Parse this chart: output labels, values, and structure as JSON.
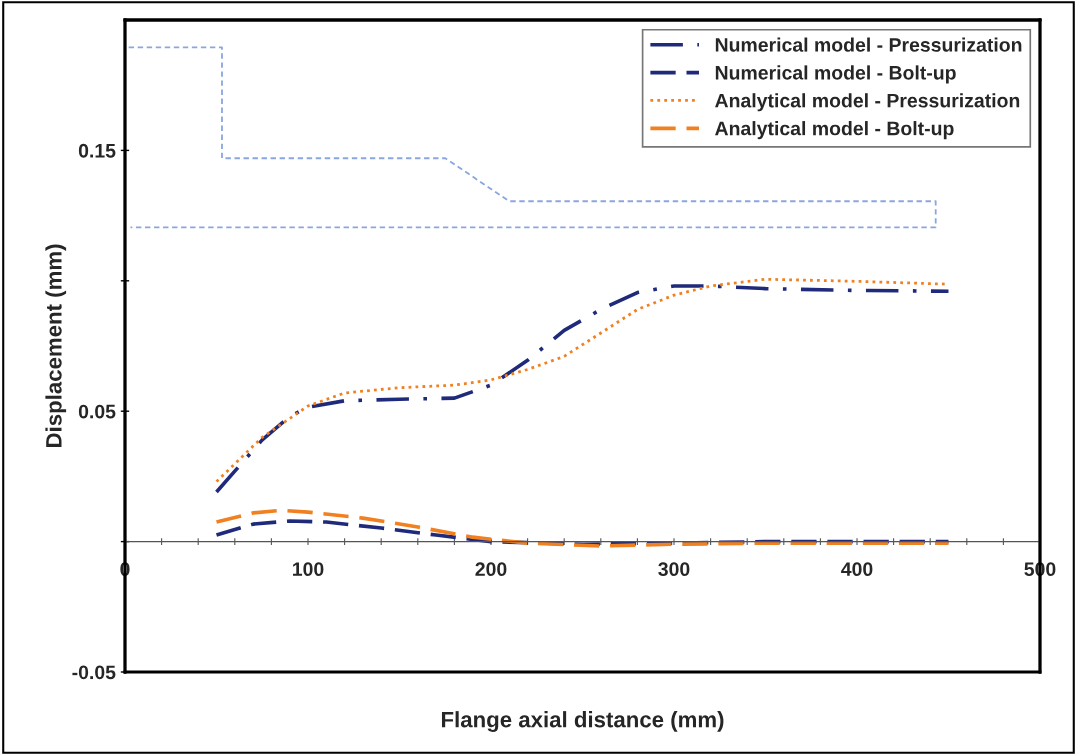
{
  "chart_data": {
    "type": "line",
    "xlabel": "Flange axial distance (mm)",
    "ylabel": "Displacement (mm)",
    "xlim": [
      0,
      500
    ],
    "ylim": [
      -0.05,
      0.2
    ],
    "xticks": [
      0,
      {
        "value": 20,
        "label": null
      },
      {
        "value": 40,
        "label": null
      },
      {
        "value": 60,
        "label": null
      },
      {
        "value": 80,
        "label": null
      },
      100,
      {
        "value": 120,
        "label": null
      },
      {
        "value": 140,
        "label": null
      },
      {
        "value": 160,
        "label": null
      },
      {
        "value": 180,
        "label": null
      },
      200,
      {
        "value": 220,
        "label": null
      },
      {
        "value": 240,
        "label": null
      },
      {
        "value": 260,
        "label": null
      },
      {
        "value": 280,
        "label": null
      },
      300,
      {
        "value": 320,
        "label": null
      },
      {
        "value": 340,
        "label": null
      },
      {
        "value": 360,
        "label": null
      },
      {
        "value": 380,
        "label": null
      },
      400,
      {
        "value": 420,
        "label": null
      },
      {
        "value": 440,
        "label": null
      },
      {
        "value": 460,
        "label": null
      },
      {
        "value": 480,
        "label": null
      },
      500
    ],
    "yticks": [
      {
        "value": -0.05,
        "label": "-0.05"
      },
      {
        "value": 0,
        "label": null
      },
      {
        "value": 0.05,
        "label": "0.05"
      },
      {
        "value": 0.1,
        "label": null
      },
      {
        "value": 0.15,
        "label": "0.15"
      }
    ],
    "grid": false,
    "legend": "top right",
    "series": [
      {
        "name": "Numerical model - Pressurization",
        "color": "#1f2a7a",
        "line_style": "dashdot",
        "x": [
          50,
          60,
          75,
          90,
          100,
          120,
          150,
          180,
          200,
          220,
          240,
          260,
          280,
          300,
          320,
          350,
          400,
          450
        ],
        "values": [
          0.019,
          0.027,
          0.039,
          0.048,
          0.0515,
          0.054,
          0.0546,
          0.055,
          0.06,
          0.0695,
          0.081,
          0.089,
          0.0955,
          0.098,
          0.098,
          0.097,
          0.0963,
          0.096
        ]
      },
      {
        "name": "Numerical model - Bolt-up",
        "color": "#1f2a7a",
        "line_style": "dashed",
        "x": [
          50,
          70,
          90,
          110,
          140,
          170,
          200,
          250,
          300,
          350,
          450
        ],
        "values": [
          0.0025,
          0.0067,
          0.0079,
          0.0075,
          0.0052,
          0.0025,
          0,
          -0.001,
          -0.0006,
          0,
          0
        ]
      },
      {
        "name": "Analytical model - Pressurization",
        "color": "#f08020",
        "line_style": "dotted",
        "x": [
          50,
          75,
          100,
          120,
          150,
          180,
          200,
          220,
          240,
          260,
          280,
          300,
          320,
          350,
          400,
          450
        ],
        "values": [
          0.023,
          0.04,
          0.052,
          0.057,
          0.059,
          0.06,
          0.062,
          0.066,
          0.071,
          0.08,
          0.089,
          0.0945,
          0.098,
          0.1006,
          0.0998,
          0.0987
        ]
      },
      {
        "name": "Analytical model - Bolt-up",
        "color": "#f08020",
        "line_style": "dashed",
        "x": [
          50,
          70,
          85,
          100,
          130,
          160,
          190,
          220,
          260,
          300,
          350,
          450
        ],
        "values": [
          0.0075,
          0.011,
          0.012,
          0.0113,
          0.009,
          0.0056,
          0.0017,
          -0.0006,
          -0.0017,
          -0.001,
          -0.0006,
          -0.0006
        ]
      },
      {
        "color": "#8aa6e0",
        "line_style": "thin_dashed",
        "x": [
          2,
          53,
          53,
          175,
          210,
          443,
          443,
          3
        ],
        "values": [
          0.1895,
          0.1895,
          0.147,
          0.147,
          0.1305,
          0.1305,
          0.1205,
          0.1205
        ]
      }
    ]
  }
}
